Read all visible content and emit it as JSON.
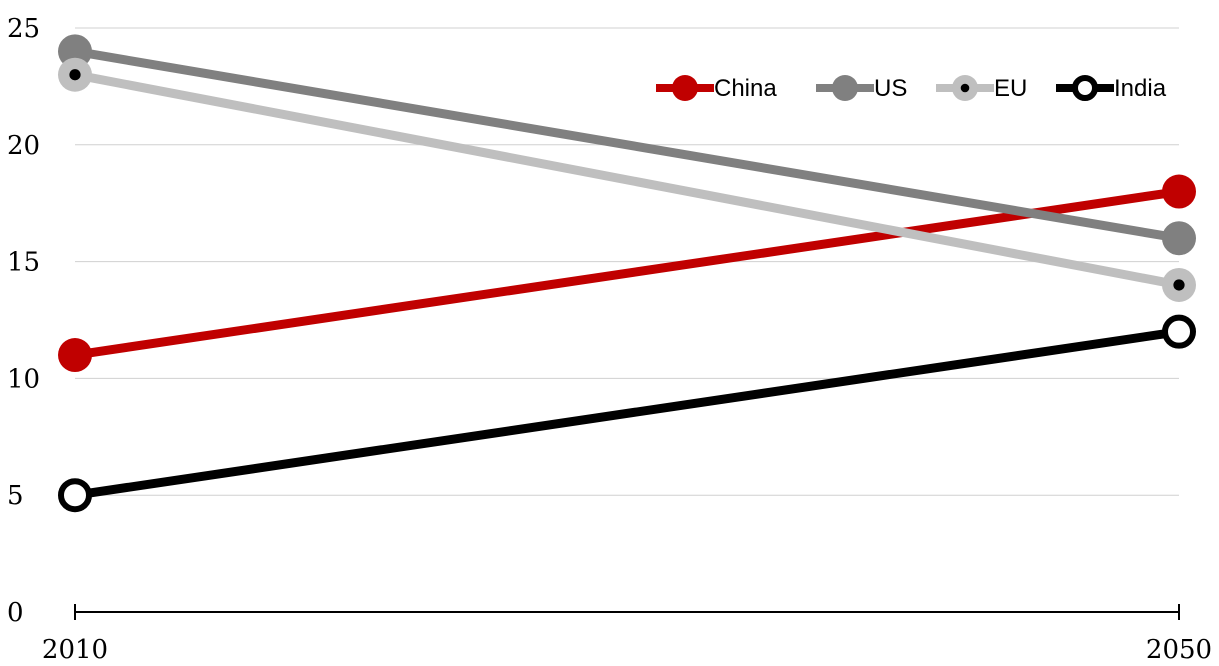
{
  "chart_data": {
    "type": "line",
    "title": "",
    "xlabel": "",
    "ylabel": "",
    "x": [
      "2010",
      "2050"
    ],
    "ylim": [
      0,
      25
    ],
    "y_ticks": [
      "0",
      "5",
      "10",
      "15",
      "20",
      "25"
    ],
    "grid": true,
    "legend_position": "top-right",
    "series": [
      {
        "name": "China",
        "values": [
          11,
          18
        ],
        "color": "#C00000",
        "marker": "filled"
      },
      {
        "name": "US",
        "values": [
          24,
          16
        ],
        "color": "#808080",
        "marker": "filled"
      },
      {
        "name": "EU",
        "values": [
          23,
          14
        ],
        "color": "#BFBFBF",
        "marker": "filled-dot"
      },
      {
        "name": "India",
        "values": [
          5,
          12
        ],
        "color": "#000000",
        "marker": "hollow"
      }
    ]
  }
}
